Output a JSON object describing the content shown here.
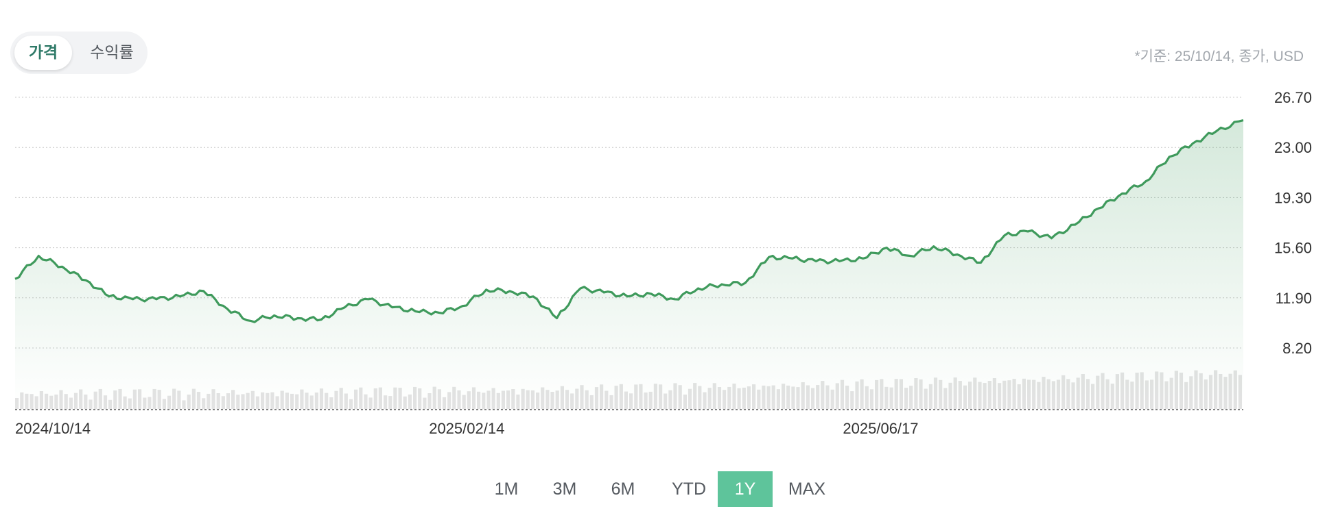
{
  "toggle": {
    "price_label": "가격",
    "return_label": "수익률"
  },
  "basis_note": "*기준: 25/10/14, 종가, USD",
  "ranges": [
    "1M",
    "3M",
    "6M",
    "YTD",
    "1Y",
    "MAX"
  ],
  "active_range": "1Y",
  "colors": {
    "line": "#3f9a5c",
    "area": "#3f9a5c",
    "volume": "#e3e3e3",
    "active_button": "#5ec49b",
    "grid": "#c9c9c9"
  },
  "chart_data": {
    "type": "line",
    "title": "",
    "xlabel": "",
    "ylabel": "",
    "grid": true,
    "y_ticks": [
      "26.70",
      "23.00",
      "19.30",
      "15.60",
      "11.90",
      "8.20"
    ],
    "ylim": [
      8.2,
      26.7
    ],
    "x_ticks": [
      "2024/10/14",
      "2025/02/14",
      "2025/06/17"
    ],
    "series": [
      {
        "x": [
          "2024-10-14",
          "2024-10-21",
          "2024-10-28",
          "2024-11-04",
          "2024-11-11",
          "2024-11-18",
          "2024-11-25",
          "2024-12-02",
          "2024-12-09",
          "2024-12-16",
          "2024-12-23",
          "2024-12-30",
          "2025-01-06",
          "2025-01-13",
          "2025-01-20",
          "2025-01-27",
          "2025-02-03",
          "2025-02-10",
          "2025-02-17",
          "2025-02-24",
          "2025-03-03",
          "2025-03-10",
          "2025-03-17",
          "2025-03-24",
          "2025-03-31",
          "2025-04-07",
          "2025-04-14",
          "2025-04-21",
          "2025-04-28",
          "2025-05-05",
          "2025-05-12",
          "2025-05-19",
          "2025-05-26",
          "2025-06-02",
          "2025-06-09",
          "2025-06-16",
          "2025-06-23",
          "2025-06-30",
          "2025-07-07",
          "2025-07-14",
          "2025-07-21",
          "2025-07-28",
          "2025-08-04",
          "2025-08-11",
          "2025-08-18",
          "2025-08-25",
          "2025-09-01",
          "2025-09-08",
          "2025-09-15",
          "2025-09-22",
          "2025-09-29",
          "2025-10-06",
          "2025-10-14"
        ],
        "values": [
          13.3,
          15.0,
          14.2,
          13.2,
          12.0,
          11.8,
          11.8,
          12.0,
          12.4,
          11.1,
          10.2,
          10.6,
          10.4,
          10.3,
          11.2,
          11.8,
          11.2,
          10.9,
          10.8,
          11.3,
          12.5,
          12.4,
          12.0,
          10.4,
          12.6,
          12.3,
          12.0,
          12.2,
          11.8,
          12.6,
          12.9,
          13.0,
          14.9,
          14.8,
          14.6,
          14.6,
          14.8,
          15.6,
          15.0,
          15.7,
          15.1,
          14.5,
          16.5,
          16.8,
          16.3,
          17.3,
          18.5,
          19.6,
          20.5,
          22.3,
          23.3,
          24.2,
          25.0
        ]
      }
    ]
  }
}
